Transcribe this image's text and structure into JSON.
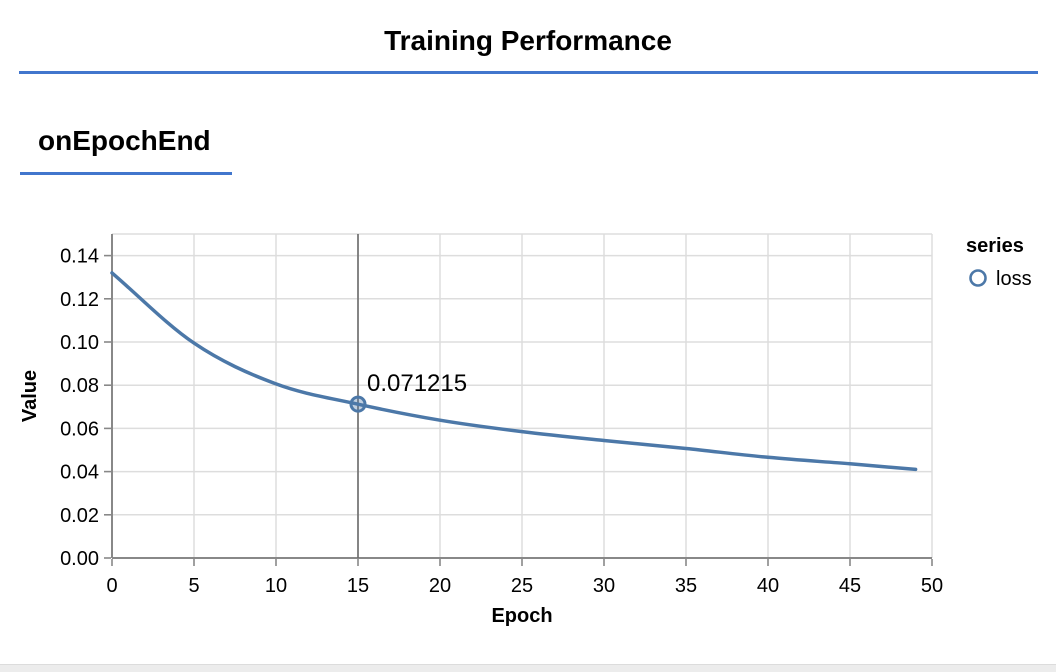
{
  "header": {
    "title": "Training Performance",
    "accent_color": "#4176cd"
  },
  "section": {
    "title": "onEpochEnd"
  },
  "chart_data": {
    "type": "line",
    "xlabel": "Epoch",
    "ylabel": "Value",
    "xlim": [
      0,
      50
    ],
    "ylim": [
      0,
      0.15
    ],
    "grid": true,
    "x_ticks": [
      0,
      5,
      10,
      15,
      20,
      25,
      30,
      35,
      40,
      45,
      50
    ],
    "x_tick_labels": [
      "0",
      "5",
      "10",
      "15",
      "20",
      "25",
      "30",
      "35",
      "40",
      "45",
      "50"
    ],
    "y_ticks": [
      0,
      0.02,
      0.04,
      0.06,
      0.08,
      0.1,
      0.12,
      0.14
    ],
    "y_tick_labels": [
      "0.00",
      "0.02",
      "0.04",
      "0.06",
      "0.08",
      "0.10",
      "0.12",
      "0.14"
    ],
    "legend": {
      "position": "top-right",
      "title": "series",
      "entries": [
        {
          "label": "loss",
          "marker": "open-circle",
          "color": "#4c78a8"
        }
      ]
    },
    "series": [
      {
        "name": "loss",
        "color": "#4c78a8",
        "x": [
          0,
          5,
          10,
          15,
          20,
          25,
          30,
          35,
          40,
          45,
          49
        ],
        "y": [
          0.132,
          0.0995,
          0.0806,
          0.071215,
          0.0638,
          0.0585,
          0.0544,
          0.0507,
          0.0466,
          0.0436,
          0.041
        ]
      }
    ],
    "hover": {
      "series": "loss",
      "x": 15,
      "y": 0.071215,
      "label": "0.071215",
      "rule_color": "#6b6b6b"
    },
    "colors": {
      "grid": "#dddddd",
      "axis": "#888888",
      "label": "#000000"
    }
  }
}
